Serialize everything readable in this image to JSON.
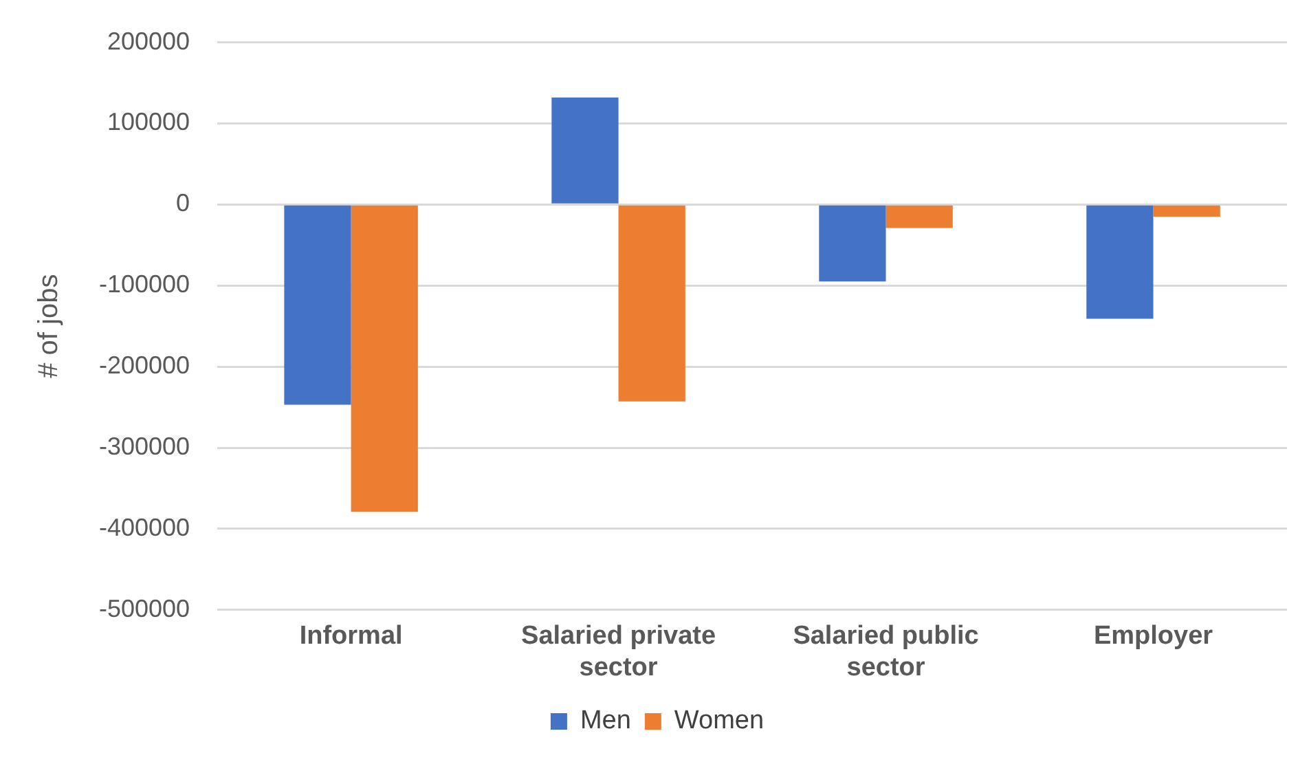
{
  "chart_data": {
    "type": "bar",
    "ylabel": "# of jobs",
    "categories": [
      "Informal",
      "Salaried private sector",
      "Salaried public sector",
      "Employer"
    ],
    "series": [
      {
        "name": "Men",
        "color": "#4472c4",
        "values": [
          -247000,
          132000,
          -95000,
          -141000
        ]
      },
      {
        "name": "Women",
        "color": "#ed7d31",
        "values": [
          -379000,
          -243000,
          -29000,
          -15000
        ]
      }
    ],
    "ylim": [
      -500000,
      200000
    ],
    "yticks": [
      -500000,
      -400000,
      -300000,
      -200000,
      -100000,
      0,
      100000,
      200000
    ],
    "grid": "y",
    "legend": "bottom"
  }
}
